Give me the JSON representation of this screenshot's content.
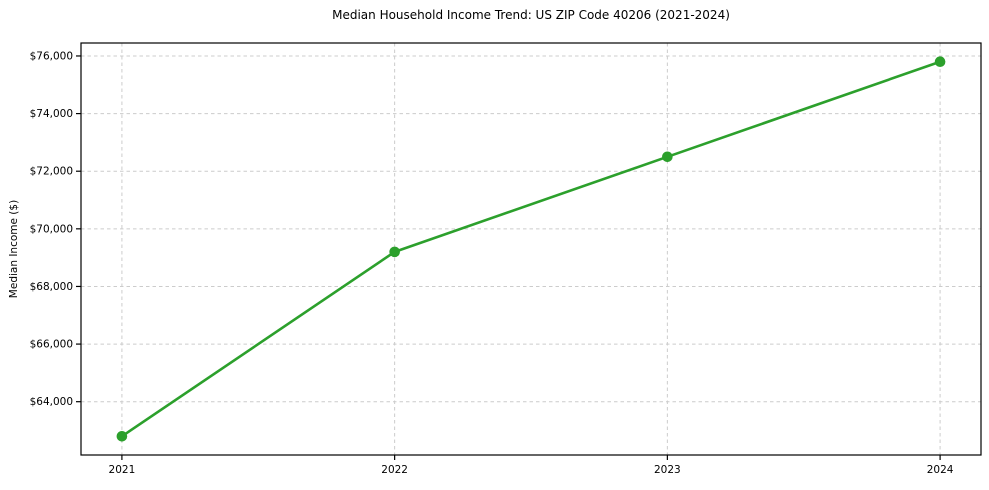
{
  "chart": {
    "title": "Median Household Income Trend: US ZIP Code 40206 (2021-2024)",
    "ylabel": "Median Income ($)"
  },
  "chart_data": {
    "type": "line",
    "title": "Median Household Income Trend: US ZIP Code 40206 (2021-2024)",
    "xlabel": "",
    "ylabel": "Median Income ($)",
    "categories": [
      "2021",
      "2022",
      "2023",
      "2024"
    ],
    "x": [
      2021,
      2022,
      2023,
      2024
    ],
    "series": [
      {
        "name": "Median Household Income",
        "values": [
          62800,
          69200,
          72500,
          75800
        ]
      }
    ],
    "xlim": [
      2020.85,
      2024.15
    ],
    "ylim": [
      62150,
      76450
    ],
    "yticks": [
      64000,
      66000,
      68000,
      70000,
      72000,
      74000,
      76000
    ],
    "ytick_labels": [
      "$64,000",
      "$66,000",
      "$68,000",
      "$70,000",
      "$72,000",
      "$74,000",
      "$76,000"
    ],
    "grid": true,
    "legend_position": "none",
    "line_color": "#2ca02c",
    "marker_color": "#2ca02c",
    "grid_color": "#cccccc",
    "spine_color": "#000000",
    "text_color": "#000000"
  }
}
